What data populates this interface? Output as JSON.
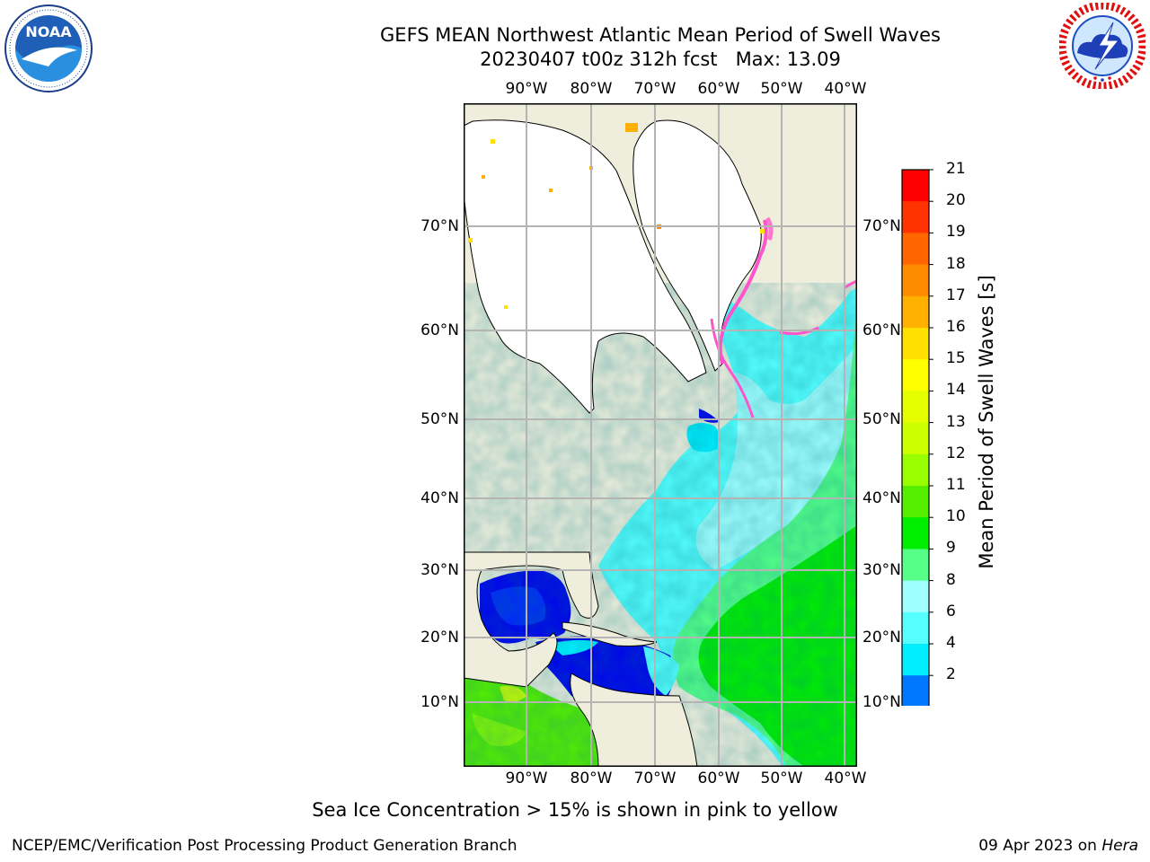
{
  "title": {
    "line1": "GEFS MEAN Northwest Atlantic Mean Period of Swell Waves",
    "line2": "20230407 t00z 312h fcst   Max: 13.09"
  },
  "logos": {
    "left": {
      "icon": "noaa-logo-icon",
      "text": "NOAA",
      "ring_text": "NATIONAL OCEANIC AND ATMOSPHERIC ADMINISTRATION · U.S. DEPARTMENT OF COMMERCE"
    },
    "right": {
      "icon": "nws-logo-icon",
      "ring_text": "NATIONAL WEATHER SERVICE"
    }
  },
  "map": {
    "lon_labels": [
      "90°W",
      "80°W",
      "70°W",
      "60°W",
      "50°W",
      "40°W"
    ],
    "lat_labels": [
      "70°N",
      "60°N",
      "50°N",
      "40°N",
      "30°N",
      "20°N",
      "10°N"
    ],
    "colors": {
      "land": "#efeedc",
      "ice": "#ffffff",
      "coast": "#000000",
      "grid": "#b4b4b4"
    }
  },
  "colorbar": {
    "title": "Mean Period of Swell Waves [s]",
    "ticks": [
      "21",
      "20",
      "19",
      "18",
      "17",
      "16",
      "15",
      "14",
      "13",
      "12",
      "11",
      "10",
      "9",
      "8",
      "6",
      "4",
      "2"
    ],
    "colors": [
      "#ff0000",
      "#ff3300",
      "#ff6600",
      "#ff8c00",
      "#ffb000",
      "#ffe000",
      "#ffff00",
      "#e6ff00",
      "#ccff00",
      "#99ff00",
      "#55ee00",
      "#00ee00",
      "#55ff88",
      "#a0ffff",
      "#55ffff",
      "#00eeff",
      "#0077ff"
    ],
    "under_color": "#0000ee"
  },
  "note": "Sea Ice Concentration > 15% is shown in pink to yellow",
  "footer": {
    "left": "NCEP/EMC/Verification Post Processing Product Generation Branch",
    "right_prefix": "09 Apr 2023 on ",
    "right_host": "Hera"
  }
}
